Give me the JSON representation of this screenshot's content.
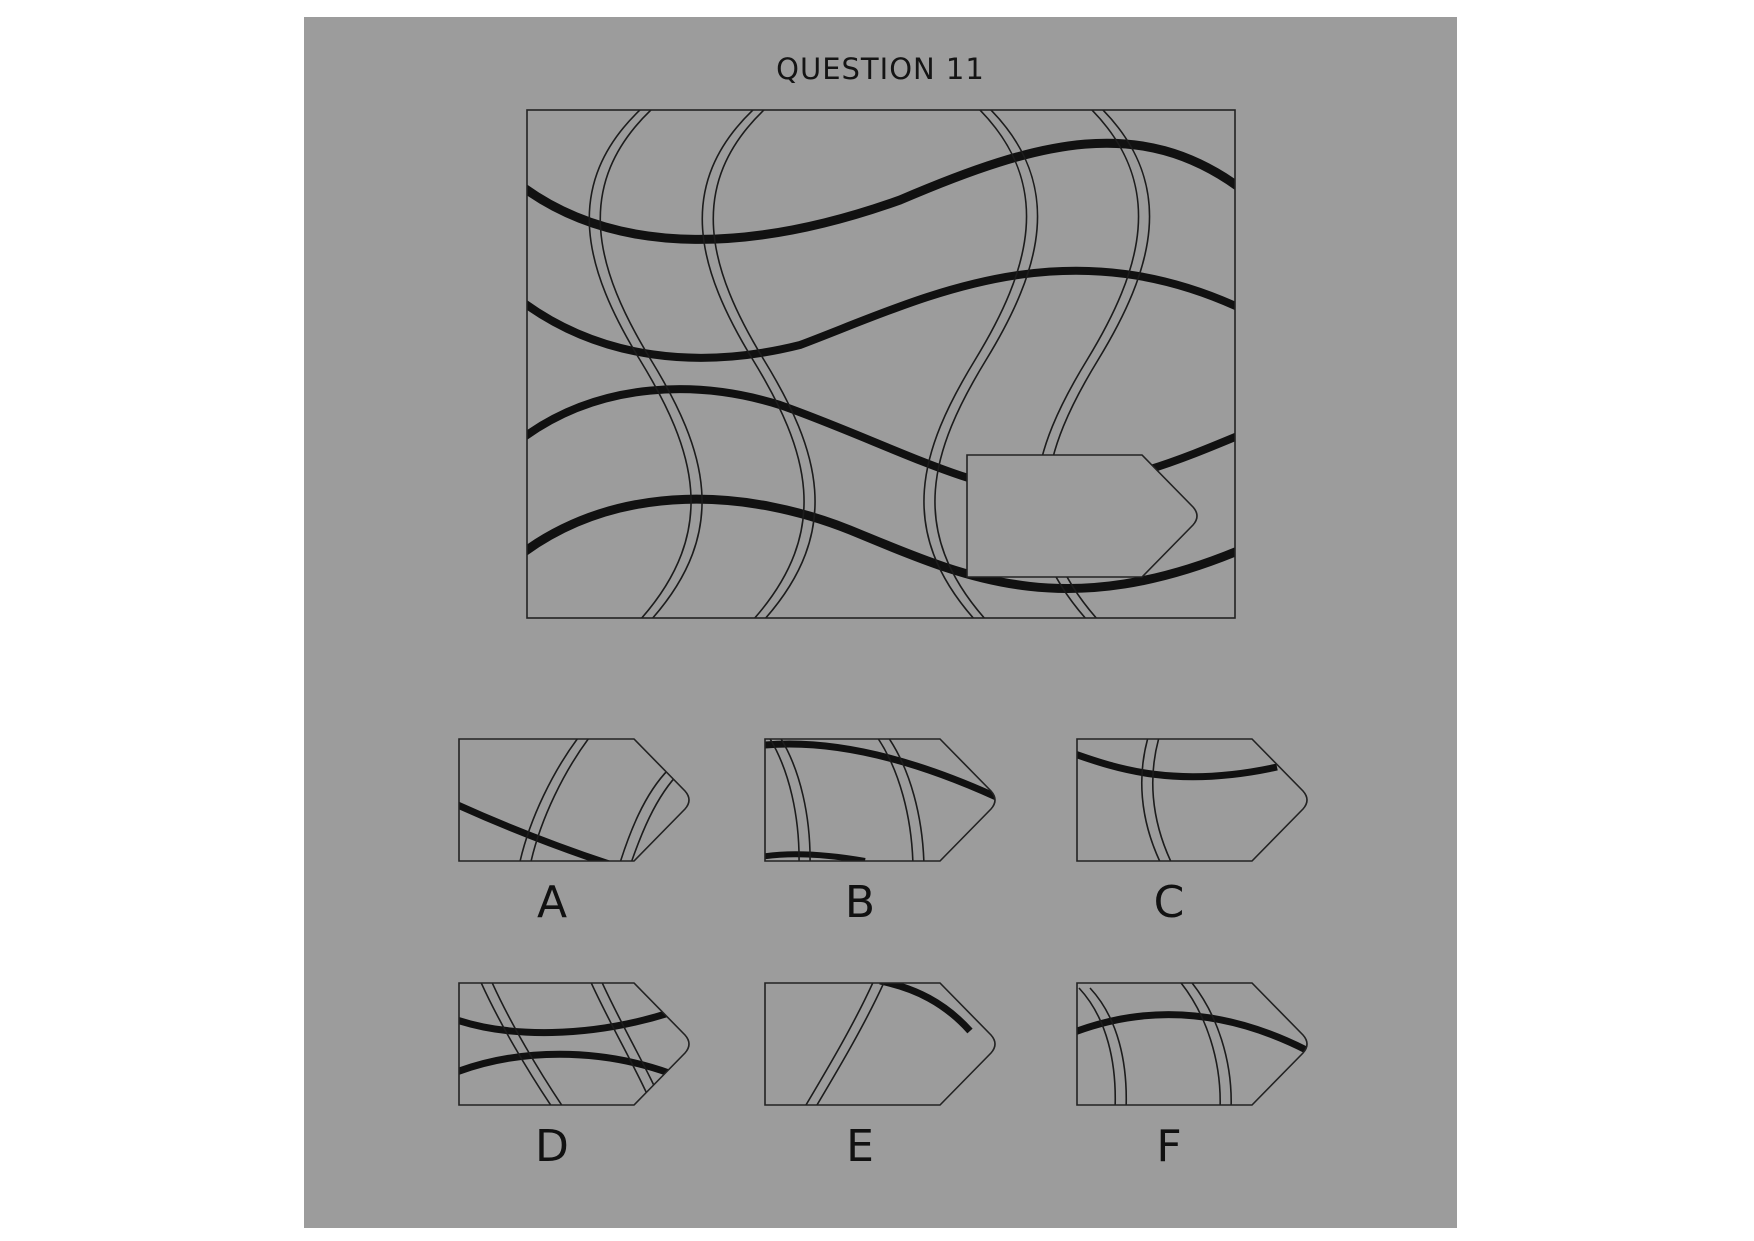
{
  "title": "QUESTION 11",
  "colors": {
    "background": "#ffffff",
    "panel": "#9c9c9c",
    "ink": "#111111"
  },
  "options": [
    {
      "label": "A"
    },
    {
      "label": "B"
    },
    {
      "label": "C"
    },
    {
      "label": "D"
    },
    {
      "label": "E"
    },
    {
      "label": "F"
    }
  ]
}
